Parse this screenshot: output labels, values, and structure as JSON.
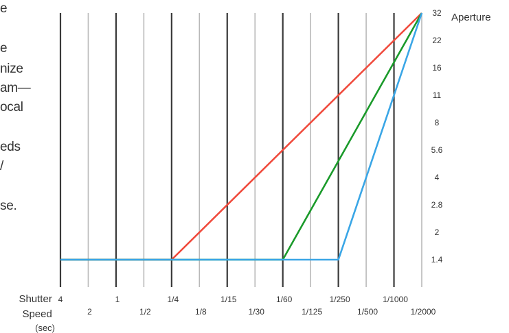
{
  "side_text_fragments": [
    "e",
    "e",
    "nize",
    "am—",
    "ocal",
    "eds",
    "/",
    "se."
  ],
  "chart_data": {
    "type": "line",
    "ylabel": "Aperture",
    "xlabel": "Shutter Speed (sec)",
    "x_ticks": [
      "4",
      "2",
      "1",
      "1/2",
      "1/4",
      "1/8",
      "1/15",
      "1/30",
      "1/60",
      "1/125",
      "1/250",
      "1/500",
      "1/1000",
      "1/2000"
    ],
    "y_ticks": [
      "1.4",
      "2",
      "2.8",
      "4",
      "5.6",
      "8",
      "11",
      "16",
      "22",
      "32"
    ],
    "grid": true,
    "series": [
      {
        "color": "#f04a3c",
        "points": [
          [
            "4",
            "1.4"
          ],
          [
            "1/4",
            "1.4"
          ],
          [
            "1/2000",
            "32"
          ]
        ]
      },
      {
        "color": "#1a9a2a",
        "points": [
          [
            "4",
            "1.4"
          ],
          [
            "1/60",
            "1.4"
          ],
          [
            "1/2000",
            "32"
          ]
        ]
      },
      {
        "color": "#3aa6e6",
        "points": [
          [
            "4",
            "1.4"
          ],
          [
            "1/250",
            "1.4"
          ],
          [
            "1/2000",
            "32"
          ]
        ]
      }
    ]
  }
}
